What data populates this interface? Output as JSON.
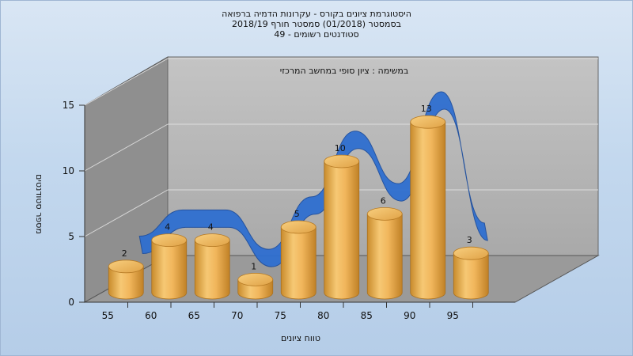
{
  "chart_data": {
    "type": "bar",
    "title_lines": [
      "היסטוגרמת ציונים בקורס - עקרונות הדמיה ברפואה",
      "בסמסטר  (01/2018)  סמסטר חורף 2018/19",
      "סטודנטים רשומים - 49"
    ],
    "subtitle": "במשימה : ציון סופי במחשב המרכזי",
    "categories": [
      "55",
      "60",
      "65",
      "70",
      "75",
      "80",
      "85",
      "90",
      "95"
    ],
    "values": [
      2,
      4,
      4,
      1,
      5,
      10,
      6,
      13,
      3
    ],
    "y_ticks": [
      "0",
      "5",
      "10",
      "15"
    ],
    "ylim": [
      0,
      15
    ],
    "xlabel": "טווח ציונים",
    "ylabel": "מספר סטודנטים",
    "grid": true,
    "bar_color": "#f0b456",
    "curve_color": "#2f6fd0",
    "wall_color": "#b3b3b3",
    "floor_color": "#8c8c8c"
  }
}
